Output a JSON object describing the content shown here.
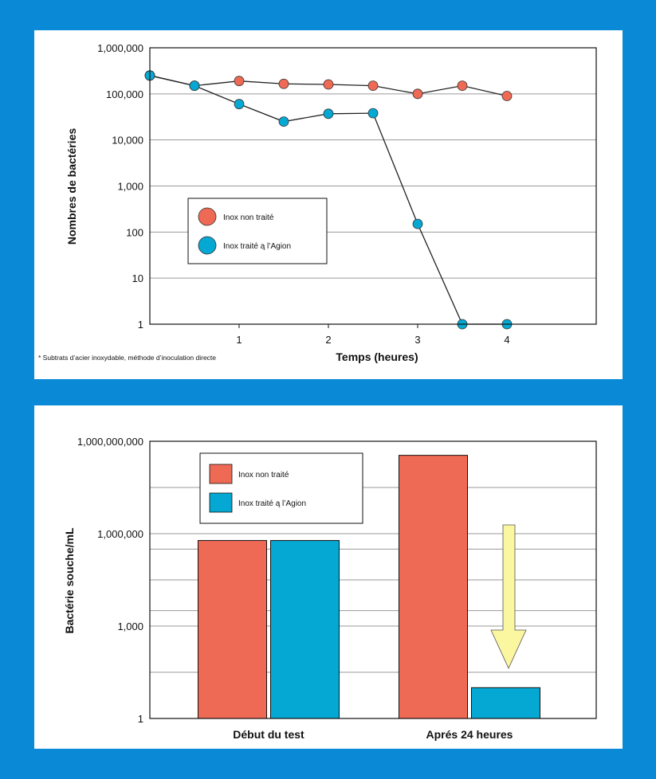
{
  "colors": {
    "background": "#0a8ad6",
    "untreated": "#ef6a55",
    "treated": "#05a8d2",
    "arrow": "#fbf6a0",
    "grid": "#9a9a9a"
  },
  "chart_data": [
    {
      "type": "line",
      "ylabel": "Nombres de bactéries",
      "xlabel": "Temps (heures)",
      "y_scale": "log",
      "ylim": [
        1,
        1000000
      ],
      "xlim": [
        0,
        5
      ],
      "yticks": [
        "1",
        "10",
        "100",
        "1,000",
        "10,000",
        "100,000",
        "1,000,000"
      ],
      "xticks": [
        "1",
        "2",
        "3",
        "4"
      ],
      "grid": true,
      "legend_position": "center-left",
      "footnote": "* Subtrats d’acier inoxydable, méthode d’inoculation directe",
      "series": [
        {
          "name": "Inox non traité",
          "color": "#ef6a55",
          "x": [
            0,
            0.5,
            1,
            1.5,
            2,
            2.5,
            3,
            3.5,
            4
          ],
          "y": [
            250000,
            150000,
            190000,
            165000,
            160000,
            150000,
            100000,
            150000,
            90000
          ]
        },
        {
          "name": "Inox traité ą l’Agion",
          "color": "#05a8d2",
          "x": [
            0,
            0.5,
            1,
            1.5,
            2,
            2.5,
            3,
            3.5,
            4
          ],
          "y": [
            250000,
            150000,
            60000,
            25000,
            37000,
            38000,
            150,
            1,
            1
          ]
        }
      ]
    },
    {
      "type": "bar",
      "ylabel": "Bactérie souche/mL",
      "y_scale": "log",
      "ylim": [
        1,
        1000000000
      ],
      "yticks": [
        "1",
        "1,000",
        "1,000,000",
        "1,000,000,000"
      ],
      "categories": [
        "Début du test",
        "Aprés 24 heures"
      ],
      "grid": true,
      "legend_position": "top-left",
      "annotation": "down-arrow",
      "series": [
        {
          "name": "Inox non traité",
          "color": "#ef6a55",
          "values": [
            600000,
            350000000
          ]
        },
        {
          "name": "Inox traité ą l’Agion",
          "color": "#05a8d2",
          "values": [
            600000,
            10
          ]
        }
      ]
    }
  ]
}
